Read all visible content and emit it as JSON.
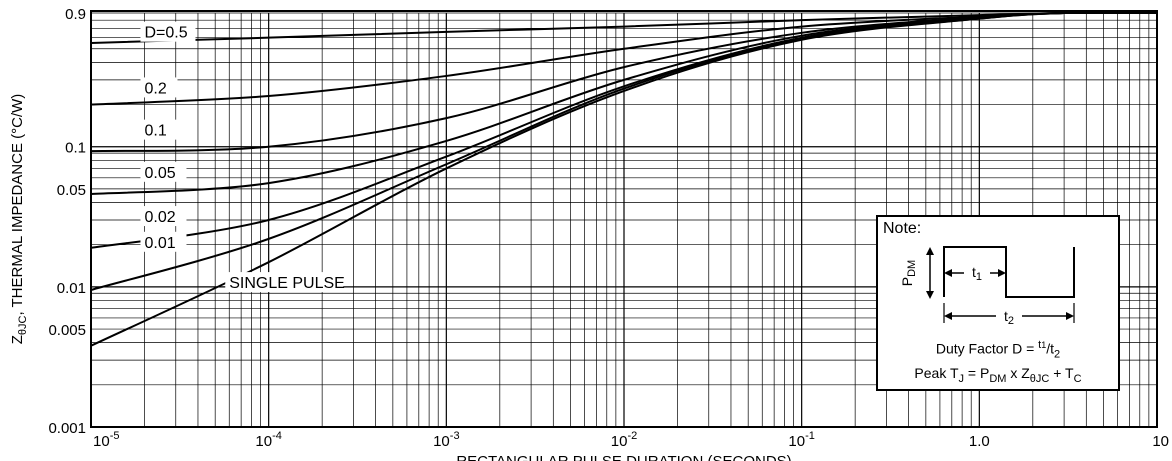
{
  "chart_data": {
    "type": "line",
    "xlabel": "RECTANGULAR PULSE DURATION (SECONDS)",
    "ylabel_main": "Z",
    "ylabel_sub": "θJC",
    "ylabel_rest": ", THERMAL IMPEDANCE (°C/W)",
    "xscale": "log",
    "yscale": "log",
    "xlim": [
      1e-05,
      10
    ],
    "ylim": [
      0.001,
      0.9
    ],
    "grid": true,
    "x_ticks": [
      {
        "value": 1e-05,
        "base": "10",
        "exp": "-5"
      },
      {
        "value": 0.0001,
        "base": "10",
        "exp": "-4"
      },
      {
        "value": 0.001,
        "base": "10",
        "exp": "-3"
      },
      {
        "value": 0.01,
        "base": "10",
        "exp": "-2"
      },
      {
        "value": 0.1,
        "base": "10",
        "exp": "-1"
      },
      {
        "value": 1,
        "base": "1.0",
        "exp": ""
      },
      {
        "value": 10,
        "base": "10",
        "exp": ""
      }
    ],
    "y_ticks": [
      {
        "value": 0.9,
        "label": "0.9"
      },
      {
        "value": 0.1,
        "label": "0.1"
      },
      {
        "value": 0.05,
        "label": "0.05"
      },
      {
        "value": 0.01,
        "label": "0.01"
      },
      {
        "value": 0.005,
        "label": "0.005"
      },
      {
        "value": 0.001,
        "label": "0.001"
      }
    ],
    "series": [
      {
        "name": "D=0.5",
        "label_at": [
          2e-05,
          0.6
        ],
        "x": [
          1e-05,
          0.0001,
          0.001,
          0.01,
          0.1,
          1,
          3,
          10
        ],
        "y": [
          0.55,
          0.6,
          0.66,
          0.72,
          0.8,
          0.87,
          0.9,
          0.9
        ]
      },
      {
        "name": "0.2",
        "label_at": [
          2e-05,
          0.24
        ],
        "x": [
          1e-05,
          0.0001,
          0.001,
          0.01,
          0.1,
          1,
          3,
          10
        ],
        "y": [
          0.2,
          0.23,
          0.32,
          0.5,
          0.72,
          0.85,
          0.9,
          0.9
        ]
      },
      {
        "name": "0.1",
        "label_at": [
          2e-05,
          0.12
        ],
        "x": [
          1e-05,
          0.0001,
          0.001,
          0.01,
          0.1,
          1,
          3,
          10
        ],
        "y": [
          0.093,
          0.1,
          0.16,
          0.37,
          0.65,
          0.84,
          0.9,
          0.9
        ]
      },
      {
        "name": "0.05",
        "label_at": [
          2e-05,
          0.06
        ],
        "x": [
          1e-05,
          0.0001,
          0.001,
          0.01,
          0.1,
          1,
          3,
          10
        ],
        "y": [
          0.046,
          0.055,
          0.11,
          0.3,
          0.62,
          0.83,
          0.9,
          0.9
        ]
      },
      {
        "name": "0.02",
        "label_at": [
          2e-05,
          0.029
        ],
        "x": [
          1e-05,
          0.0001,
          0.001,
          0.01,
          0.1,
          1,
          3,
          10
        ],
        "y": [
          0.019,
          0.03,
          0.085,
          0.27,
          0.6,
          0.83,
          0.9,
          0.9
        ]
      },
      {
        "name": "0.01",
        "label_at": [
          2e-05,
          0.019
        ],
        "x": [
          1e-05,
          0.0001,
          0.001,
          0.01,
          0.1,
          1,
          3,
          10
        ],
        "y": [
          0.0095,
          0.022,
          0.075,
          0.26,
          0.59,
          0.82,
          0.9,
          0.9
        ]
      },
      {
        "name": "SINGLE PULSE",
        "label_at": [
          6e-05,
          0.0098
        ],
        "x": [
          1e-05,
          0.0001,
          0.001,
          0.01,
          0.1,
          1,
          3,
          10
        ],
        "y": [
          0.0038,
          0.015,
          0.07,
          0.25,
          0.58,
          0.82,
          0.9,
          0.9
        ]
      }
    ]
  },
  "note": {
    "title": "Note:",
    "p_label": "P",
    "p_sub": "DM",
    "t1_label": "t",
    "t1_sub": "1",
    "t2_label": "t",
    "t2_sub": "2",
    "duty_text": "Duty Factor  D = ",
    "duty_num": "t",
    "duty_num_sub": "1",
    "duty_slash": "/",
    "duty_den": "t",
    "duty_den_sub": "2",
    "peak_pre": "Peak T",
    "peak_tj_sub": "J",
    "peak_eq": " = P",
    "peak_pdm_sub": "DM",
    "peak_times": " x Z",
    "peak_z_sub": "θJC",
    "peak_plus": " + T",
    "peak_tc_sub": "C"
  }
}
